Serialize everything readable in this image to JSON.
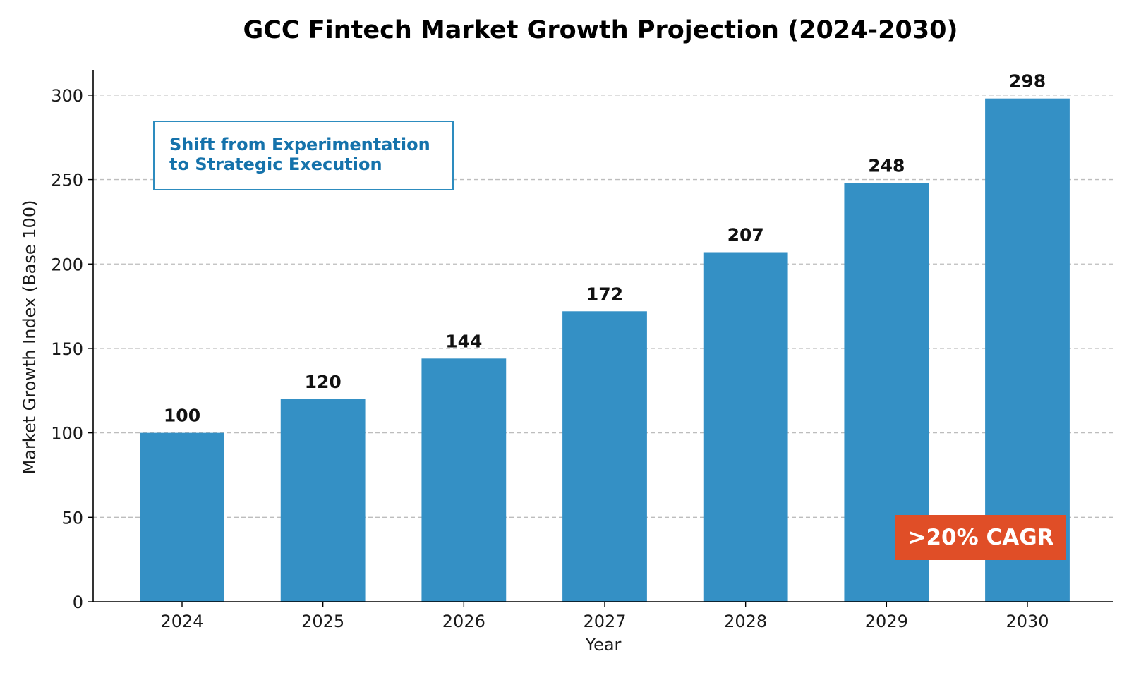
{
  "chart_data": {
    "type": "bar",
    "title": "GCC Fintech Market Growth Projection (2024-2030)",
    "xlabel": "Year",
    "ylabel": "Market Growth Index (Base 100)",
    "categories": [
      "2024",
      "2025",
      "2026",
      "2027",
      "2028",
      "2029",
      "2030"
    ],
    "values": [
      100,
      120,
      144,
      172,
      207,
      248,
      298
    ],
    "data_labels": [
      "100",
      "120",
      "144",
      "172",
      "207",
      "248",
      "298"
    ],
    "ylim": [
      0,
      315
    ],
    "yticks": [
      0,
      50,
      100,
      150,
      200,
      250,
      300
    ],
    "ytick_labels": [
      "0",
      "50",
      "100",
      "150",
      "200",
      "250",
      "300"
    ],
    "grid": "horizontal dashed",
    "bar_color": "#3490c5",
    "annotations": {
      "callout": {
        "lines": [
          "Shift from Experimentation",
          "to Strategic Execution"
        ],
        "text_color": "#1572ab",
        "border_color": "#2d8cbf",
        "placement": "top-left"
      },
      "badge": {
        "text": ">20% CAGR",
        "background": "#e04e27",
        "text_color": "#ffffff",
        "placement": "bottom-right"
      }
    }
  }
}
